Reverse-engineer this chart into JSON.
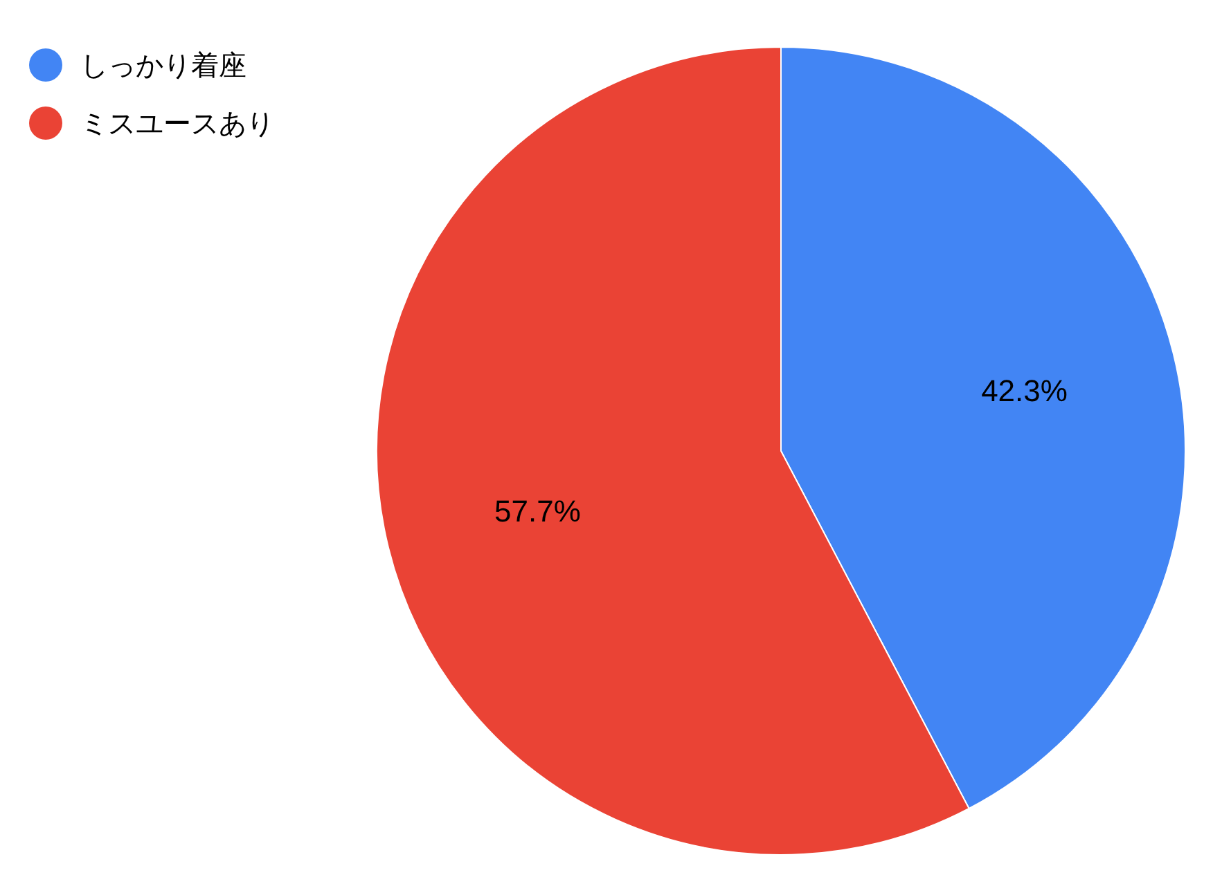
{
  "chart_data": {
    "type": "pie",
    "categories": [
      "しっかり着座",
      "ミスユースあり"
    ],
    "values": [
      42.3,
      57.7
    ],
    "colors": [
      "#4285f4",
      "#ea4335"
    ],
    "value_labels": [
      "42.3%",
      "57.7%"
    ],
    "legend": "top left"
  }
}
